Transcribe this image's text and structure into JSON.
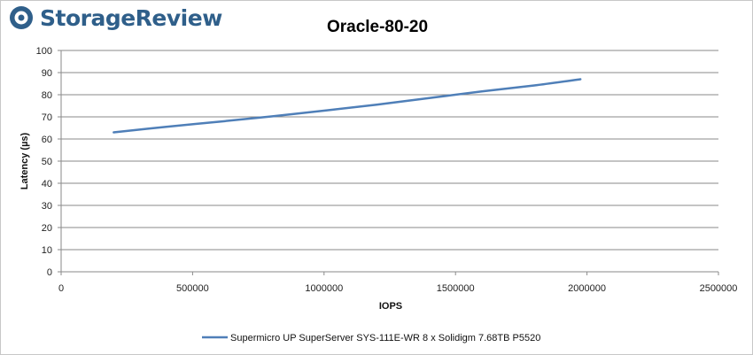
{
  "brand": {
    "name": "StorageReview",
    "color": "#2f5f8a",
    "icon": "storage-review-logo-icon"
  },
  "chart_data": {
    "type": "line",
    "title": "Oracle-80-20",
    "xlabel": "IOPS",
    "ylabel": "Latency (µs)",
    "xlim": [
      0,
      2500000
    ],
    "ylim": [
      0,
      100
    ],
    "xticks": [
      0,
      500000,
      1000000,
      1500000,
      2000000,
      2500000
    ],
    "yticks": [
      0,
      10,
      20,
      30,
      40,
      50,
      60,
      70,
      80,
      90,
      100
    ],
    "grid": true,
    "legend_position": "bottom",
    "series": [
      {
        "name": "Supermicro UP SuperServer SYS-111E-WR 8 x Solidigm 7.68TB P5520",
        "color": "#4f7fb8",
        "x": [
          200000,
          400000,
          600000,
          800000,
          1000000,
          1200000,
          1400000,
          1600000,
          1800000,
          1975000
        ],
        "y": [
          63,
          65.5,
          67.8,
          70.2,
          72.8,
          75.5,
          78.5,
          81.5,
          84.2,
          87
        ]
      }
    ]
  }
}
